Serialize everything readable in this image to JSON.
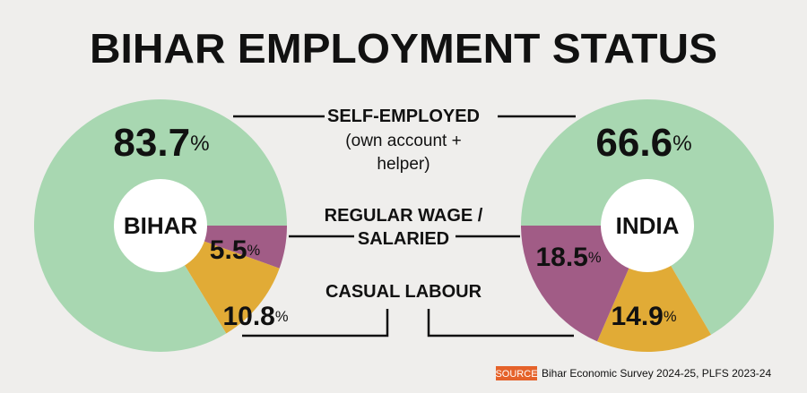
{
  "title": "BIHAR EMPLOYMENT STATUS",
  "annotation": "(own account + helper)",
  "chart_data": [
    {
      "type": "pie",
      "center_label": "BIHAR",
      "categories": [
        "SELF-EMPLOYED",
        "REGULAR WAGE / SALARIED",
        "CASUAL LABOUR"
      ],
      "values": [
        83.7,
        5.5,
        10.8
      ],
      "value_suffix": "%",
      "colors": [
        "#a8d7b1",
        "#a15c86",
        "#e1ab36"
      ],
      "start_angle": 90,
      "order": [
        1,
        2,
        0
      ]
    },
    {
      "type": "pie",
      "center_label": "INDIA",
      "values": [
        66.6,
        18.5,
        14.9
      ],
      "value_suffix": "%",
      "colors": [
        "#a8d7b1",
        "#a15c86",
        "#e1ab36"
      ],
      "start_angle": 270,
      "order": [
        0,
        2,
        1
      ]
    }
  ],
  "source": {
    "tag": "SOURCE",
    "text": "Bihar Economic Survey 2024-25, PLFS 2023-24"
  }
}
